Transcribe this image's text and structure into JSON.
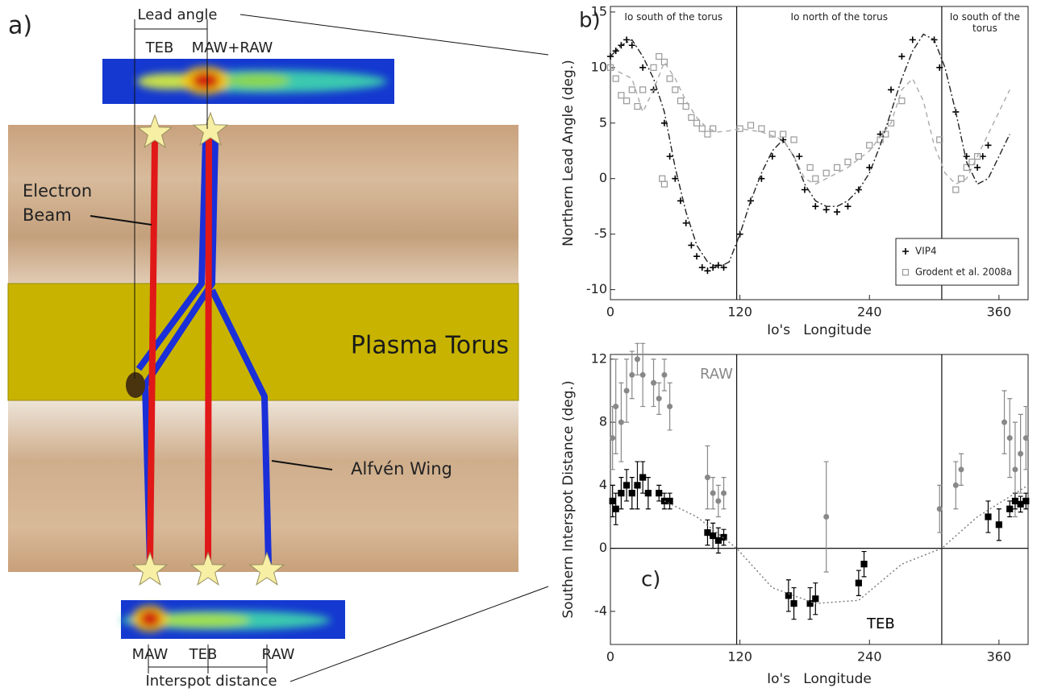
{
  "diagram": {
    "panel_label": "a)",
    "lead_angle": "Lead angle",
    "top_spots": [
      "TEB",
      "MAW+RAW"
    ],
    "electron_beam": [
      "Electron",
      "Beam"
    ],
    "plasma_torus": "Plasma Torus",
    "alfven_wing": "Alfvén Wing",
    "bottom_spots": [
      "MAW",
      "TEB",
      "RAW"
    ],
    "interspot_distance": "Interspot distance"
  },
  "chart_data": [
    {
      "type": "scatter",
      "panel_label": "b)",
      "regions": [
        "Io south of the torus",
        "Io north of the torus",
        "Io south of the torus"
      ],
      "xlabel": "Io's   Longitude",
      "ylabel": "Northern Lead Angle (deg.)",
      "xlim": [
        0,
        387
      ],
      "xticks": [
        0,
        120,
        240,
        360
      ],
      "ylim": [
        -10.9,
        15.5
      ],
      "yticks": [
        -10,
        -5,
        0,
        5,
        10,
        15
      ],
      "vlines": [
        117,
        307
      ],
      "legend": "lower right",
      "series": [
        {
          "name": "VIP4",
          "color": "#000000",
          "marker": "plus",
          "x": [
            0,
            5,
            10,
            15,
            20,
            30,
            40,
            50,
            55,
            60,
            65,
            70,
            75,
            80,
            85,
            90,
            95,
            100,
            105,
            120,
            130,
            140,
            150,
            160,
            175,
            180,
            190,
            200,
            210,
            220,
            230,
            240,
            250,
            260,
            270,
            280,
            300,
            305,
            320,
            330,
            340,
            345,
            350
          ],
          "values": [
            11,
            11.5,
            12,
            12.5,
            12,
            10,
            8,
            5,
            2,
            0,
            -2,
            -4,
            -6,
            -7,
            -8,
            -8.3,
            -8,
            -7.8,
            -8,
            -5,
            -2,
            0,
            2,
            3.5,
            2,
            -1,
            -2.5,
            -2.8,
            -3,
            -2.5,
            -1,
            1,
            4,
            8,
            11,
            12.5,
            12.5,
            10,
            6,
            2,
            1,
            2,
            3
          ]
        },
        {
          "name": "Grodent et al. 2008a",
          "color": "#999999",
          "marker": "square",
          "x": [
            0,
            5,
            10,
            15,
            20,
            25,
            30,
            40,
            45,
            50,
            55,
            60,
            65,
            70,
            75,
            80,
            85,
            90,
            95,
            48,
            50,
            120,
            130,
            140,
            150,
            160,
            170,
            185,
            190,
            200,
            210,
            220,
            230,
            240,
            250,
            255,
            260,
            270,
            305,
            320,
            325,
            330,
            335,
            340
          ],
          "values": [
            10,
            9,
            7.5,
            7,
            8,
            6.5,
            8,
            10,
            11,
            10.5,
            9,
            8,
            7,
            6.5,
            5.5,
            5,
            4.5,
            4,
            4.5,
            0,
            -0.5,
            4.5,
            4.8,
            4.5,
            4,
            4,
            3.5,
            1,
            0,
            0.5,
            1,
            1.5,
            2,
            3,
            3.5,
            4,
            5,
            7,
            3.5,
            -1,
            0,
            1,
            1.5,
            2
          ]
        },
        {
          "color": "#222222",
          "line": "dashdot",
          "x": [
            0,
            10,
            20,
            30,
            40,
            50,
            60,
            70,
            80,
            90,
            100,
            110,
            120,
            130,
            140,
            150,
            160,
            170,
            180,
            190,
            200,
            210,
            220,
            230,
            240,
            250,
            260,
            270,
            280,
            290,
            300,
            310,
            320,
            330,
            340,
            350,
            360,
            370
          ],
          "values": [
            11,
            12,
            12.5,
            11,
            9,
            6,
            1,
            -3,
            -6,
            -7.5,
            -8,
            -7.5,
            -5,
            -2,
            0.5,
            2.5,
            3.5,
            2,
            -0.5,
            -2,
            -2.5,
            -2.5,
            -2,
            -1,
            0.5,
            3,
            6,
            9,
            11.5,
            13,
            12.5,
            10,
            6,
            1.5,
            -0.5,
            0,
            2,
            4
          ]
        },
        {
          "color": "#aaaaaa",
          "line": "dashed",
          "x": [
            0,
            20,
            30,
            40,
            50,
            60,
            70,
            80,
            90,
            100,
            110,
            120,
            140,
            160,
            170,
            180,
            190,
            200,
            220,
            240,
            260,
            270,
            280,
            290,
            300,
            310,
            320,
            330,
            340,
            350,
            360,
            370
          ],
          "values": [
            10,
            9,
            6,
            8,
            10.5,
            9,
            7,
            5.5,
            4.5,
            4.2,
            4.3,
            4.5,
            4.2,
            3.5,
            2,
            0,
            -0.5,
            0,
            1,
            2.5,
            5,
            8,
            9,
            7,
            3,
            0.5,
            -0.5,
            0,
            2,
            4,
            6,
            8
          ]
        }
      ]
    },
    {
      "type": "scatter",
      "panel_label": "c)",
      "xlabel": "Io's   Longitude",
      "ylabel": "Southern Interspot Distance (deg.)",
      "xlim": [
        0,
        387
      ],
      "xticks": [
        0,
        120,
        240,
        360
      ],
      "ylim": [
        -6.1,
        12.3
      ],
      "yticks": [
        -4,
        0,
        4,
        8,
        12
      ],
      "vlines": [
        117,
        307
      ],
      "zero_line": true,
      "legend": "inline",
      "series": [
        {
          "name": "RAW",
          "color": "#888888",
          "marker": "circle",
          "x": [
            2,
            5,
            10,
            15,
            20,
            25,
            30,
            40,
            45,
            50,
            55,
            90,
            95,
            100,
            105,
            200,
            305,
            320,
            325,
            365,
            370,
            375,
            380,
            385
          ],
          "values": [
            7,
            9,
            8,
            10,
            11,
            12,
            11,
            10.5,
            9.5,
            11,
            9,
            4.5,
            3.5,
            3,
            3.5,
            2,
            2.5,
            4,
            5,
            8,
            7,
            5,
            6,
            7
          ],
          "errors": [
            2,
            3,
            2.5,
            2,
            1.5,
            1,
            2,
            1.5,
            1,
            1,
            1.5,
            2,
            1,
            1,
            1,
            3.5,
            1.5,
            1.5,
            1,
            2,
            2.5,
            3,
            2.5,
            2
          ]
        },
        {
          "name": "TEB",
          "color": "#000000",
          "marker": "square",
          "x": [
            2,
            5,
            10,
            15,
            20,
            25,
            30,
            35,
            45,
            50,
            55,
            90,
            95,
            100,
            105,
            165,
            170,
            185,
            190,
            230,
            235,
            350,
            360,
            370,
            375,
            380,
            385
          ],
          "values": [
            3,
            2.5,
            3.5,
            4,
            3.5,
            4,
            4.5,
            3.5,
            3.5,
            3,
            3,
            1,
            0.8,
            0.5,
            0.7,
            -3,
            -3.5,
            -3.5,
            -3.2,
            -2.2,
            -1,
            2,
            1.5,
            2.5,
            3,
            2.8,
            3
          ],
          "errors": [
            1,
            1,
            1,
            1,
            1,
            1.5,
            1,
            1,
            0.5,
            0.5,
            0.5,
            0.8,
            0.8,
            0.8,
            0.5,
            1,
            1,
            1,
            1,
            0.8,
            0.8,
            1,
            1,
            0.5,
            0.5,
            0.5,
            0.5
          ]
        },
        {
          "color": "#777777",
          "line": "dotted",
          "x": [
            50,
            80,
            117,
            150,
            190,
            230,
            270,
            307,
            340,
            387
          ],
          "values": [
            3,
            2,
            0,
            -2.5,
            -3.5,
            -3.3,
            -1,
            0,
            2,
            4
          ]
        }
      ]
    }
  ]
}
